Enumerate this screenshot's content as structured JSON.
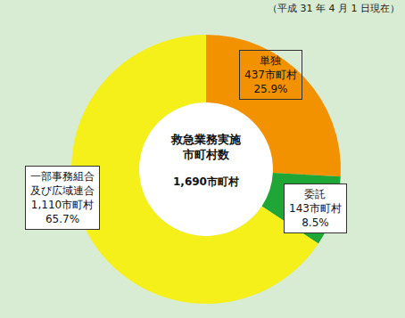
{
  "chart_data": {
    "type": "pie",
    "note": "（平成 31 年 4 月 1 日現在）",
    "center_label": [
      "救急業務実施",
      "市町村数"
    ],
    "total": 1690,
    "total_label": "1,690市町村",
    "categories": [
      "単独",
      "委託",
      "一部事務組合\n及び広域連合"
    ],
    "values": [
      437,
      143,
      1110
    ],
    "value_labels": [
      "437市町村",
      "143市町村",
      "1,110市町村"
    ],
    "percentages": [
      25.9,
      8.5,
      65.7
    ],
    "percentage_labels": [
      "25.9%",
      "8.5%",
      "65.7%"
    ],
    "colors": [
      "#f39200",
      "#1fa637",
      "#f5f01a"
    ],
    "data_labels": true
  }
}
